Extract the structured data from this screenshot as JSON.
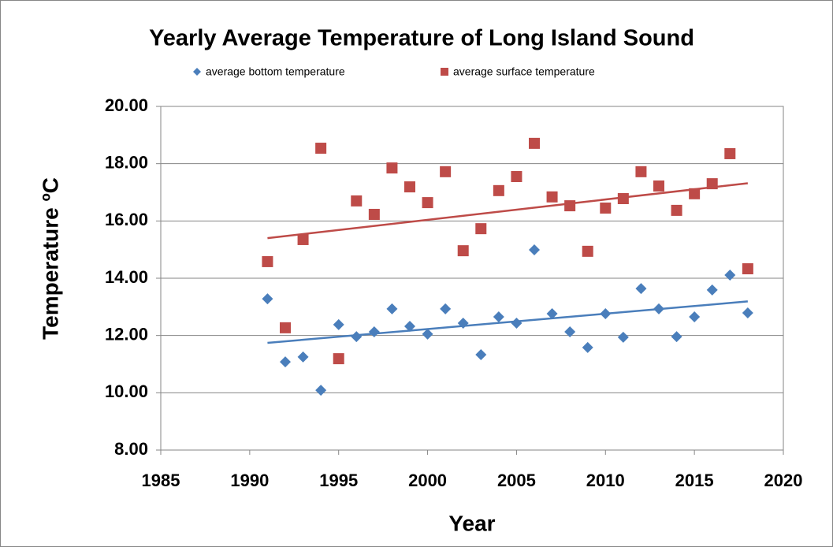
{
  "chart_data": {
    "type": "scatter",
    "title": "Yearly Average Temperature of Long Island Sound",
    "x_label": "Year",
    "y_label": "Temperature ºC",
    "x": [
      1991,
      1992,
      1993,
      1994,
      1995,
      1996,
      1997,
      1998,
      1999,
      2000,
      2001,
      2002,
      2003,
      2004,
      2005,
      2006,
      2007,
      2008,
      2009,
      2010,
      2011,
      2012,
      2013,
      2014,
      2015,
      2016,
      2017,
      2018
    ],
    "series": [
      {
        "name": "average bottom temperature",
        "color": "#4a7ebb",
        "marker": "diamond",
        "trendline": true,
        "values": [
          13.28,
          11.08,
          11.25,
          10.09,
          12.38,
          11.96,
          12.13,
          12.93,
          12.32,
          12.05,
          12.93,
          12.43,
          11.33,
          12.65,
          12.43,
          14.99,
          12.76,
          12.13,
          11.58,
          12.76,
          11.94,
          13.64,
          12.93,
          11.96,
          12.65,
          13.59,
          14.11,
          12.79
        ]
      },
      {
        "name": "average surface temperature",
        "color": "#be4b48",
        "marker": "square",
        "trendline": true,
        "values": [
          14.58,
          12.27,
          15.35,
          18.54,
          11.19,
          16.7,
          16.23,
          17.85,
          17.19,
          16.64,
          17.72,
          14.96,
          15.73,
          17.06,
          17.55,
          18.71,
          16.84,
          16.53,
          14.94,
          16.45,
          16.78,
          17.72,
          17.22,
          16.37,
          16.95,
          17.3,
          18.35,
          14.33
        ]
      }
    ],
    "xlim": [
      1985,
      2020
    ],
    "xticks": [
      1985,
      1990,
      1995,
      2000,
      2005,
      2010,
      2015,
      2020
    ],
    "ylim": [
      8,
      20
    ],
    "yticks": [
      {
        "value": 8,
        "label": "8.00"
      },
      {
        "value": 10,
        "label": "10.00"
      },
      {
        "value": 12,
        "label": "12.00"
      },
      {
        "value": 14,
        "label": "14.00"
      },
      {
        "value": 16,
        "label": "16.00"
      },
      {
        "value": 18,
        "label": "18.00"
      },
      {
        "value": 20,
        "label": "20.00"
      }
    ],
    "grid": true,
    "legend": "top"
  }
}
